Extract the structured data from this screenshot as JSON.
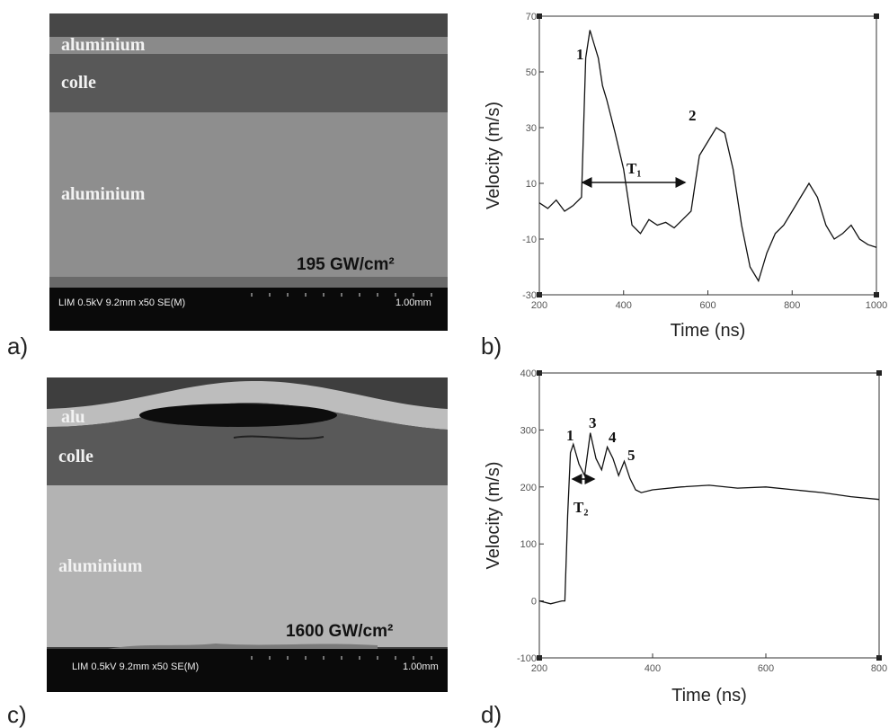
{
  "panels": [
    {
      "label": "a)",
      "layers": [
        "aluminium",
        "colle",
        "aluminium"
      ],
      "fluence": "195 GW/cm²",
      "info": "LIM 0.5kV 9.2mm x50 SE(M)",
      "scale": "1.00mm"
    },
    {
      "label": "b)"
    },
    {
      "label": "c)",
      "layers": [
        "alu",
        "colle",
        "aluminium"
      ],
      "fluence": "1600 GW/cm²",
      "info": "LIM 0.5kV 9.2mm x50 SE(M)",
      "scale": "1.00mm"
    },
    {
      "label": "d)"
    }
  ],
  "chart_data": [
    {
      "type": "line",
      "xlabel": "Time (ns)",
      "ylabel": "Velocity (m/s)",
      "annotations": [
        "1",
        "2",
        "T₁"
      ],
      "xlim": [
        200,
        1000
      ],
      "xticks": [
        200,
        400,
        600,
        800,
        1000
      ],
      "ylim": [
        -30,
        70
      ],
      "yticks": [
        -30,
        -10,
        10,
        30,
        50,
        70
      ],
      "x": [
        200,
        220,
        240,
        260,
        280,
        300,
        310,
        320,
        330,
        340,
        350,
        360,
        380,
        400,
        420,
        440,
        460,
        480,
        500,
        520,
        540,
        560,
        570,
        580,
        600,
        620,
        640,
        660,
        680,
        700,
        720,
        740,
        760,
        780,
        800,
        820,
        840,
        860,
        880,
        900,
        920,
        940,
        960,
        980,
        1000
      ],
      "series": [
        {
          "name": "Velocity",
          "color": "#111111",
          "values": [
            3,
            1,
            4,
            0,
            2,
            5,
            55,
            65,
            60,
            55,
            45,
            40,
            28,
            15,
            -5,
            -8,
            -3,
            -5,
            -4,
            -6,
            -3,
            0,
            10,
            20,
            25,
            30,
            28,
            15,
            -5,
            -20,
            -25,
            -15,
            -8,
            -5,
            0,
            5,
            10,
            5,
            -5,
            -10,
            -8,
            -5,
            -10,
            -12,
            -13
          ]
        }
      ]
    },
    {
      "type": "line",
      "xlabel": "Time (ns)",
      "ylabel": "Velocity (m/s)",
      "annotations": [
        "1",
        "3",
        "4",
        "5",
        "T₂"
      ],
      "xlim": [
        200,
        800
      ],
      "xticks": [
        200,
        400,
        600,
        800
      ],
      "ylim": [
        -100,
        400
      ],
      "yticks": [
        -100,
        0,
        100,
        200,
        300,
        400
      ],
      "x": [
        200,
        220,
        240,
        245,
        250,
        255,
        260,
        270,
        280,
        290,
        300,
        310,
        320,
        330,
        340,
        350,
        360,
        370,
        380,
        400,
        450,
        500,
        550,
        600,
        650,
        700,
        750,
        800
      ],
      "series": [
        {
          "name": "Velocity",
          "color": "#111111",
          "values": [
            0,
            -5,
            0,
            0,
            150,
            260,
            275,
            240,
            220,
            295,
            250,
            230,
            270,
            250,
            220,
            245,
            215,
            195,
            190,
            195,
            200,
            203,
            198,
            200,
            195,
            190,
            183,
            178
          ]
        }
      ]
    }
  ]
}
